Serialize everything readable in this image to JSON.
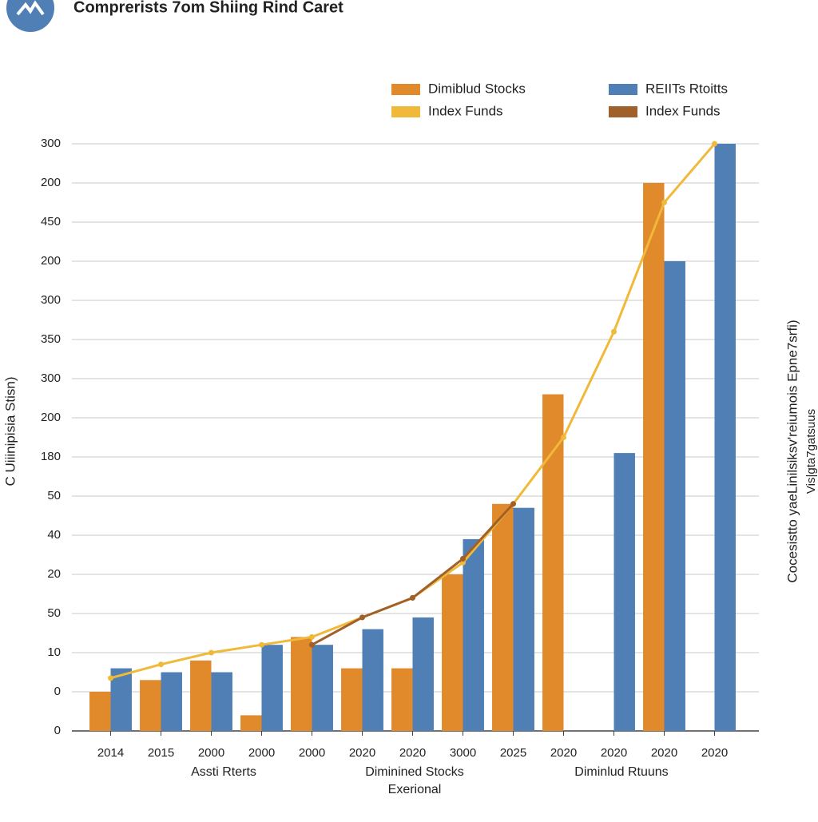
{
  "chart_data": {
    "type": "bar",
    "title": "Comprerists 7om Shiing Rind Caret",
    "y_label": "C Uiiinipisia Stisn)",
    "y2_label": [
      "Cocesistto yaeLinilsiksv'reiumois Epne7srfi)",
      "Vis|gta7gatsuus"
    ],
    "group_labels": [
      "Assti Rterts",
      "Diminined Stocks",
      "Exerional",
      "Diminlud Rtuuns"
    ],
    "categories": [
      "2014",
      "2015",
      "2000",
      "2000",
      "2000",
      "2020",
      "2020",
      "3000",
      "2025",
      "2020",
      "2020",
      "2020",
      "2020"
    ],
    "ylim": [
      0,
      15.5
    ],
    "yticks": [
      {
        "value": 0,
        "label": "0"
      },
      {
        "value": 1,
        "label": "0"
      },
      {
        "value": 2,
        "label": "10"
      },
      {
        "value": 3,
        "label": "50"
      },
      {
        "value": 4,
        "label": "20"
      },
      {
        "value": 5,
        "label": "40"
      },
      {
        "value": 6,
        "label": "50"
      },
      {
        "value": 7,
        "label": "180"
      },
      {
        "value": 8,
        "label": "200"
      },
      {
        "value": 9,
        "label": "300"
      },
      {
        "value": 10,
        "label": "350"
      },
      {
        "value": 11,
        "label": "300"
      },
      {
        "value": 12,
        "label": "200"
      },
      {
        "value": 13,
        "label": "450"
      },
      {
        "value": 14,
        "label": "200"
      },
      {
        "value": 15,
        "label": "300"
      }
    ],
    "grid": true,
    "series": [
      {
        "name": "Dimiblud Stocks",
        "color": "#e08a2c",
        "kind": "bar",
        "values": [
          1.0,
          1.3,
          1.8,
          0.4,
          2.4,
          1.6,
          1.6,
          4.0,
          5.8,
          8.6,
          0,
          14.0,
          0
        ]
      },
      {
        "name": "REIITs Rtoitts",
        "color": "#4f7fb5",
        "kind": "bar",
        "values": [
          1.6,
          1.5,
          1.5,
          2.2,
          2.2,
          2.6,
          2.9,
          4.9,
          5.7,
          0,
          7.1,
          12.0,
          15.0
        ]
      },
      {
        "name": "Index Funds",
        "color": "#f0b93a",
        "kind": "line",
        "values": [
          1.35,
          1.7,
          2.0,
          2.2,
          2.4,
          2.9,
          3.4,
          4.3,
          5.8,
          7.5,
          10.2,
          13.5,
          15.0
        ]
      },
      {
        "name": "Index Funds",
        "color": "#a0602a",
        "kind": "line",
        "values": [
          null,
          null,
          null,
          null,
          2.2,
          2.9,
          3.4,
          4.4,
          5.8,
          null,
          null,
          null,
          null
        ]
      }
    ]
  }
}
